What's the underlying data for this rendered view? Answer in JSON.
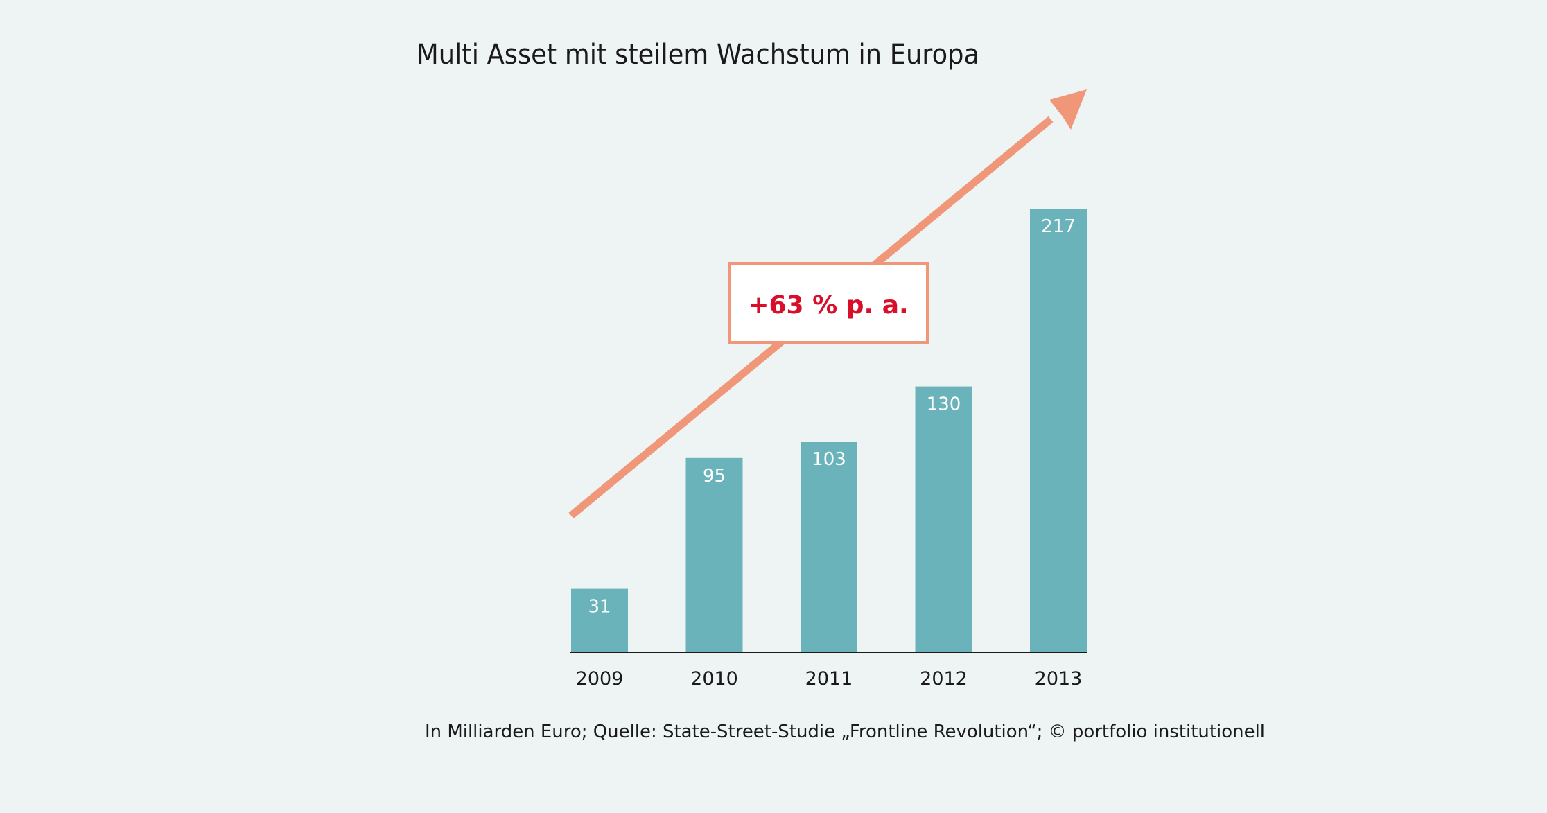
{
  "chart_data": {
    "type": "bar",
    "title": "Multi Asset mit steilem Wachstum in Europa",
    "categories": [
      "2009",
      "2010",
      "2011",
      "2012",
      "2013"
    ],
    "values": [
      31,
      95,
      103,
      130,
      217
    ],
    "data_labels": [
      "31",
      "95",
      "103",
      "130",
      "217"
    ],
    "ylim": [
      0,
      217
    ],
    "xlabel": "",
    "ylabel": "",
    "grid": false,
    "annotation": "+63 % p. a.",
    "source": "In Milliarden Euro; Quelle: State-Street-Studie „Frontline Revolution“; © portfolio institutionell",
    "colors": {
      "background": "#eef4f3",
      "bar": "#6ab3ba",
      "arrow": "#f0977a",
      "annotation_text": "#d90f2a",
      "annotation_box_fill": "#ffffff",
      "axis": "#1a1a1a",
      "value_label": "#ffffff"
    }
  }
}
